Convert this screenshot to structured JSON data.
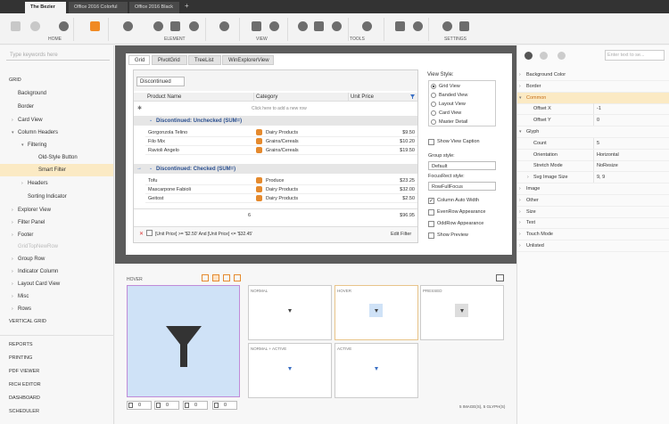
{
  "tabs": [
    "The Bezier",
    "Office 2016 Colorful",
    "Office 2016 Black"
  ],
  "ribbon": {
    "groups": [
      "HOME",
      "ELEMENT",
      "VIEW",
      "TOOLS",
      "SETTINGS"
    ]
  },
  "left_panel": {
    "search_placeholder": "Type keywords here",
    "items": [
      "GRID",
      "Background",
      "Border",
      "Card View",
      "Column Headers",
      "Filtering",
      "Old-Style Button",
      "Smart Filter",
      "Headers",
      "Sorting Indicator",
      "Explorer View",
      "Filter Panel",
      "Footer",
      "GridTopNewRow",
      "Group Row",
      "Indicator Column",
      "Layout Card View",
      "Misc",
      "Rows",
      "VERTICAL GRID",
      "REPORTS",
      "PRINTING",
      "PDF VIEWER",
      "RICH EDITOR",
      "DASHBOARD",
      "SCHEDULER"
    ]
  },
  "grid": {
    "tabs": [
      "Grid",
      "PivotGrid",
      "TreeList",
      "WinExplorerView"
    ],
    "group_chip": "Discontinued",
    "columns": [
      "Product Name",
      "Category",
      "Unit Price"
    ],
    "new_row": "Click here to add a new row",
    "groups": [
      {
        "caption": "Discontinued: Unchecked (SUM=)",
        "rows": [
          [
            "Gorgonzola Telino",
            "Dairy Products",
            "$9.50"
          ],
          [
            "Filo Mix",
            "Grains/Cereals",
            "$10.20"
          ],
          [
            "Ravioli Angelo",
            "Grains/Cereals",
            "$19.50"
          ]
        ]
      },
      {
        "caption": "Discontinued: Checked (SUM=)",
        "rows": [
          [
            "Tofu",
            "Produce",
            "$23.25"
          ],
          [
            "Mascarpone Fabioli",
            "Dairy Products",
            "$32.00"
          ],
          [
            "Geitost",
            "Dairy Products",
            "$2.50"
          ]
        ]
      }
    ],
    "footer": {
      "count": 6,
      "sum": "$96.95"
    },
    "filter": {
      "text": "[Unit Price] >= '$2.50' And [Unit Price] <= '$32.45'",
      "edit": "Edit Filter"
    }
  },
  "options": {
    "view_style_label": "View Style:",
    "view_styles": [
      "Grid View",
      "Banded View",
      "Layout View",
      "Card View",
      "Master Detail"
    ],
    "show_view_caption": "Show View Caption",
    "group_style_label": "Group style:",
    "group_style": "Default",
    "focus_label": "FocusRect style:",
    "focus_style": "RowFullFocus",
    "checks": [
      "Column Auto Width",
      "EvenRow Appearance",
      "OddRow Appearance",
      "Show Preview"
    ]
  },
  "preview": {
    "label": "HOVER",
    "states": [
      "NORMAL",
      "HOVER",
      "PRESSED",
      "NORMAL + ACTIVE",
      "ACTIVE"
    ],
    "status": "5 IMAGE(S), 5 GLYPH(S)",
    "inputs": [
      0,
      0,
      0,
      0
    ]
  },
  "properties": {
    "search_placeholder": "Enter text to se...",
    "rows": [
      {
        "name": "Background Color"
      },
      {
        "name": "Border"
      },
      {
        "name": "Common"
      },
      {
        "name": "Offset X",
        "value": -1
      },
      {
        "name": "Offset Y",
        "value": 0
      },
      {
        "name": "Glyph"
      },
      {
        "name": "Count",
        "value": 5
      },
      {
        "name": "Orientation",
        "value": "Horizontal"
      },
      {
        "name": "Stretch Mode",
        "value": "NoResize"
      },
      {
        "name": "Svg Image Size",
        "value": "9, 9"
      },
      {
        "name": "Image"
      },
      {
        "name": "Other"
      },
      {
        "name": "Size"
      },
      {
        "name": "Text"
      },
      {
        "name": "Touch Mode"
      },
      {
        "name": "Unlisted"
      }
    ]
  }
}
